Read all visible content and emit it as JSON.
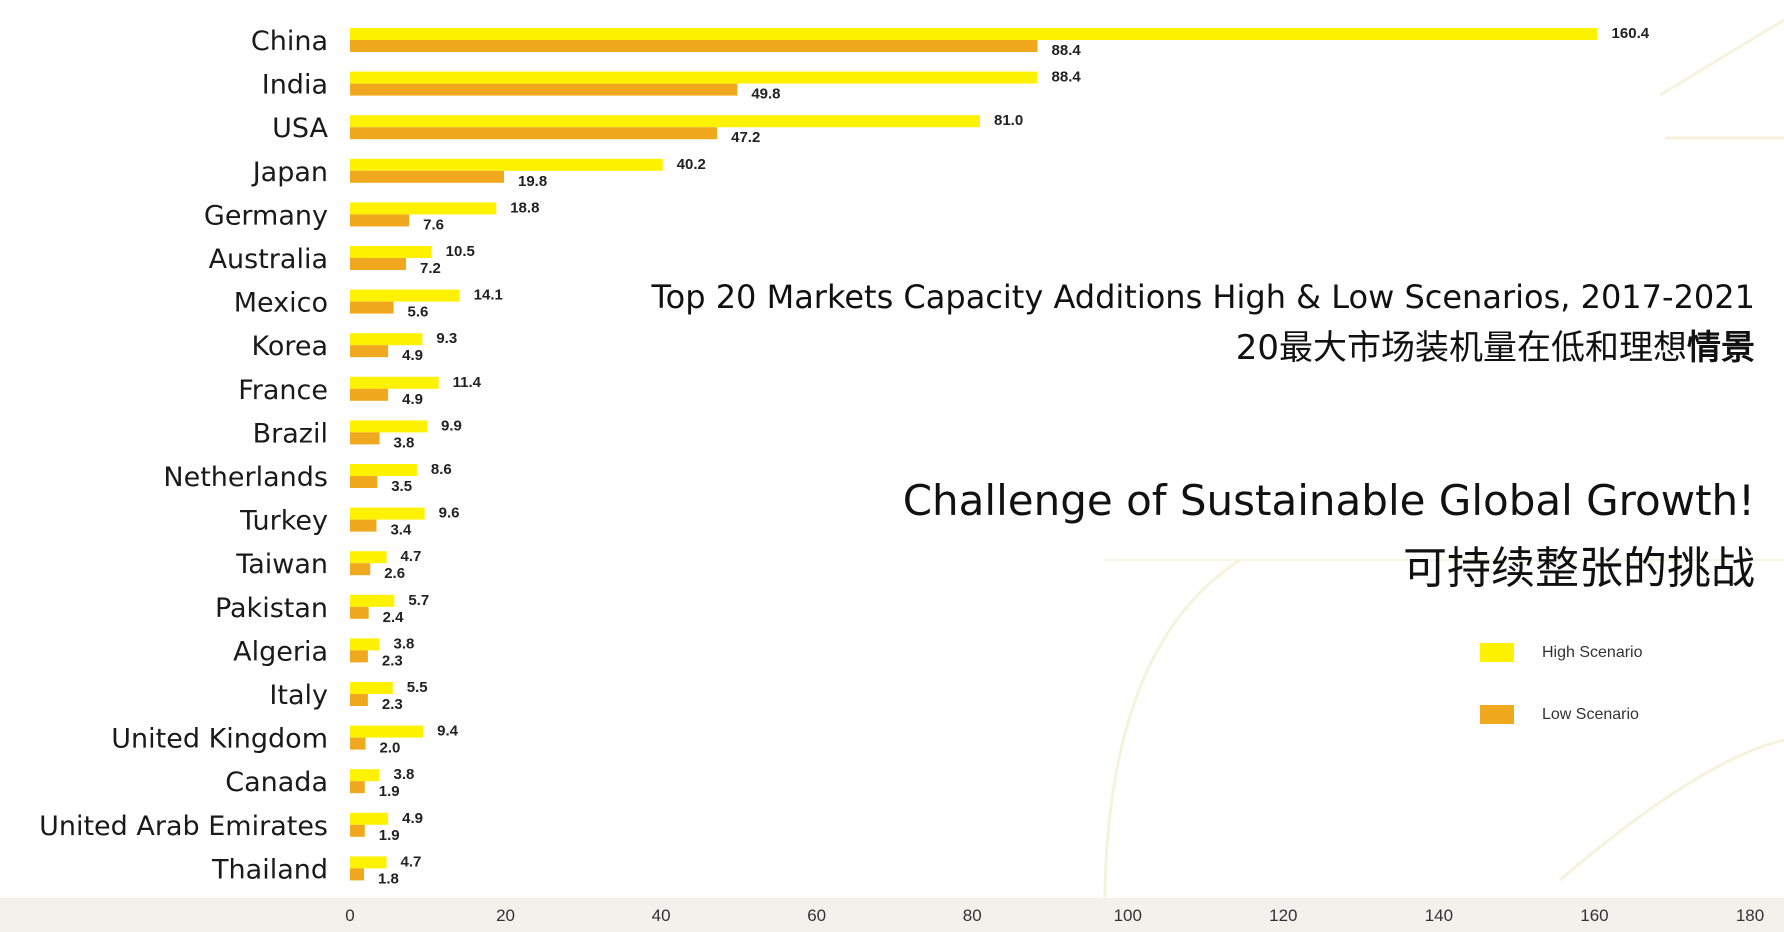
{
  "title_en": "Top 20 Markets Capacity Additions High & Low Scenarios, 2017-2021",
  "title_cn_regular": "20最大市场装机量在低和理想",
  "title_cn_bold": "情景",
  "challenge_en": "Challenge of Sustainable Global Growth!",
  "challenge_cn": "可持续整张的挑战",
  "legend": {
    "high": "High Scenario",
    "low": "Low Scenario"
  },
  "colors": {
    "high": "#fff200",
    "low": "#f0a91e"
  },
  "chart_data": {
    "type": "bar",
    "orientation": "horizontal",
    "categories": [
      "China",
      "India",
      "USA",
      "Japan",
      "Germany",
      "Australia",
      "Mexico",
      "Korea",
      "France",
      "Brazil",
      "Netherlands",
      "Turkey",
      "Taiwan",
      "Pakistan",
      "Algeria",
      "Italy",
      "United Kingdom",
      "Canada",
      "United Arab Emirates",
      "Thailand"
    ],
    "series": [
      {
        "name": "High Scenario",
        "values": [
          160.4,
          88.4,
          81.0,
          40.2,
          18.8,
          10.5,
          14.1,
          9.3,
          11.4,
          9.9,
          8.6,
          9.6,
          4.7,
          5.7,
          3.8,
          5.5,
          9.4,
          3.8,
          4.9,
          4.7
        ]
      },
      {
        "name": "Low Scenario",
        "values": [
          88.4,
          49.8,
          47.2,
          19.8,
          7.6,
          7.2,
          5.6,
          4.9,
          4.9,
          3.8,
          3.5,
          3.4,
          2.6,
          2.4,
          2.3,
          2.3,
          2.0,
          1.9,
          1.9,
          1.8
        ]
      }
    ],
    "value_labels_high": [
      "160.4",
      "88.4",
      "81.0",
      "40.2",
      "18.8",
      "10.5",
      "14.1",
      "9.3",
      "11.4",
      "9.9",
      "8.6",
      "9.6",
      "4.7",
      "5.7",
      "3.8",
      "5.5",
      "9.4",
      "3.8",
      "4.9",
      "4.7"
    ],
    "value_labels_low": [
      "88.4",
      "49.8",
      "47.2",
      "19.8",
      "7.6",
      "7.2",
      "5.6",
      "4.9",
      "4.9",
      "3.8",
      "3.5",
      "3.4",
      "2.6",
      "2.4",
      "2.3",
      "2.3",
      "2.0",
      "1.9",
      "1.9",
      "1.8"
    ],
    "xlim": [
      0,
      180
    ],
    "xticks": [
      0,
      20,
      40,
      60,
      80,
      100,
      120,
      140,
      160,
      180
    ],
    "title": "Top 20 Markets Capacity Additions High & Low Scenarios, 2017-2021",
    "legend_position": "right"
  }
}
